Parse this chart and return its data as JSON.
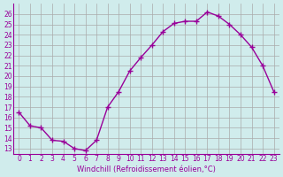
{
  "x": [
    0,
    1,
    2,
    3,
    4,
    5,
    6,
    7,
    8,
    9,
    10,
    11,
    12,
    13,
    14,
    15,
    16,
    17,
    18,
    19,
    20,
    21,
    22,
    23
  ],
  "y": [
    16.5,
    15.2,
    15.0,
    13.8,
    13.7,
    13.0,
    12.8,
    13.8,
    17.0,
    18.5,
    20.5,
    21.8,
    23.0,
    24.3,
    25.1,
    25.3,
    25.3,
    26.2,
    25.8,
    25.0,
    24.0,
    22.8,
    21.0,
    18.5
  ],
  "line_color": "#990099",
  "marker": "+",
  "marker_size": 5,
  "bg_color": "#d0ecec",
  "grid_color": "#aaaaaa",
  "xlabel": "Windchill (Refroidissement éolien,°C)",
  "ylabel_ticks": [
    13,
    14,
    15,
    16,
    17,
    18,
    19,
    20,
    21,
    22,
    23,
    24,
    25,
    26
  ],
  "ylim": [
    12.5,
    27
  ],
  "xlim": [
    -0.5,
    23.5
  ],
  "xticks": [
    0,
    1,
    2,
    3,
    4,
    5,
    6,
    7,
    8,
    9,
    10,
    11,
    12,
    13,
    14,
    15,
    16,
    17,
    18,
    19,
    20,
    21,
    22,
    23
  ]
}
